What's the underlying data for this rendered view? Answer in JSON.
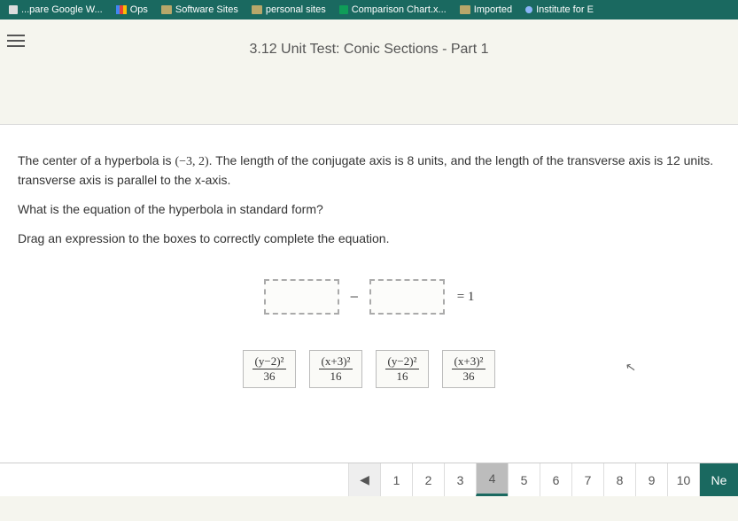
{
  "bookmarks": {
    "items": [
      {
        "label": "...pare Google W...",
        "icon": "page"
      },
      {
        "label": "Ops",
        "icon": "ops"
      },
      {
        "label": "Software Sites",
        "icon": "folder"
      },
      {
        "label": "personal sites",
        "icon": "folder"
      },
      {
        "label": "Comparison Chart.x...",
        "icon": "sheets"
      },
      {
        "label": "Imported",
        "icon": "folder"
      },
      {
        "label": "Institute for E",
        "icon": "dot"
      }
    ]
  },
  "page_title": "3.12 Unit Test: Conic Sections - Part 1",
  "problem": {
    "line1_pre": "The center of a hyperbola is ",
    "center": "(−3, 2)",
    "line1_post": ". The length of the conjugate axis is 8 units, and the length of the transverse axis is 12 units.",
    "line2": "transverse axis is parallel to the x-axis.",
    "question": "What is the equation of the hyperbola in standard form?",
    "instruction": "Drag an expression to the boxes to correctly complete the equation."
  },
  "equation": {
    "minus": "−",
    "equals": "= 1"
  },
  "choices": [
    {
      "numer": "(y−2)²",
      "denom": "36"
    },
    {
      "numer": "(x+3)²",
      "denom": "16"
    },
    {
      "numer": "(y−2)²",
      "denom": "16"
    },
    {
      "numer": "(x+3)²",
      "denom": "36"
    }
  ],
  "pagination": {
    "prev": "◀",
    "pages": [
      "1",
      "2",
      "3",
      "4",
      "5",
      "6",
      "7",
      "8",
      "9",
      "10"
    ],
    "active": "4",
    "next": "Ne"
  }
}
